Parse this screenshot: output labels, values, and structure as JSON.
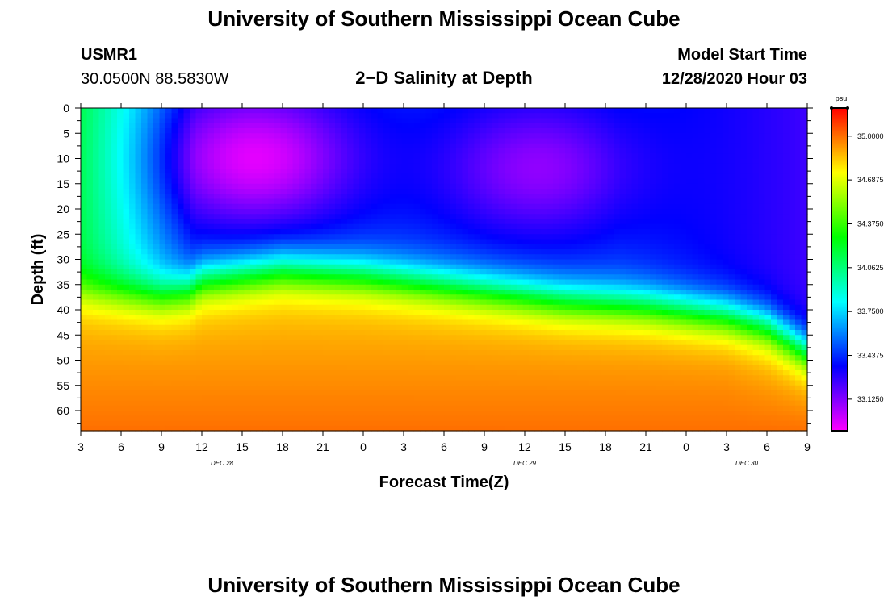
{
  "header": {
    "title": "University of Southern Mississippi Ocean Cube",
    "station": "USMR1",
    "location": "30.0500N 88.5830W",
    "subtitle": "2−D Salinity at Depth",
    "model_label": "Model Start Time",
    "model_time": "12/28/2020 Hour 03"
  },
  "footer": {
    "title": "University of Southern Mississippi Ocean Cube"
  },
  "colors": {
    "background": "#ffffff",
    "axis": "#000000"
  },
  "chart_data": {
    "type": "heatmap",
    "title": "2−D Salinity at Depth",
    "xlabel": "Forecast Time(Z)",
    "ylabel": "Depth (ft)",
    "x_tick_labels": [
      "3",
      "6",
      "9",
      "12",
      "15",
      "18",
      "21",
      "0",
      "3",
      "6",
      "9",
      "12",
      "15",
      "18",
      "21",
      "0",
      "3",
      "6",
      "9"
    ],
    "x_range_hours": [
      0,
      54
    ],
    "day_labels": [
      {
        "text": "DEC  28",
        "hour": 10.5
      },
      {
        "text": "DEC  29",
        "hour": 33
      },
      {
        "text": "DEC  30",
        "hour": 49.5
      }
    ],
    "y_tick_labels": [
      "0",
      "5",
      "10",
      "15",
      "20",
      "25",
      "30",
      "35",
      "40",
      "45",
      "50",
      "55",
      "60"
    ],
    "y_ticks": [
      0,
      5,
      10,
      15,
      20,
      25,
      30,
      35,
      40,
      45,
      50,
      55,
      60
    ],
    "y_range": [
      0,
      64
    ],
    "colorbar": {
      "unit": "psu",
      "min": 32.9,
      "max": 35.2,
      "tick_labels": [
        "35.0000",
        "34.6875",
        "34.3750",
        "34.0625",
        "33.7500",
        "33.4375",
        "33.1250"
      ],
      "ticks": [
        35.0,
        34.6875,
        34.375,
        34.0625,
        33.75,
        33.4375,
        33.125
      ]
    },
    "series": [
      {
        "name": "halocline_depth_ft",
        "hours": [
          0,
          3,
          6,
          8,
          9,
          12,
          15,
          18,
          21,
          24,
          27,
          30,
          33,
          36,
          39,
          42,
          45,
          48,
          51,
          54
        ],
        "values": [
          36,
          36.5,
          37,
          36,
          34,
          33,
          32,
          32.5,
          33,
          34,
          35,
          36,
          37,
          38,
          38.5,
          39,
          40,
          41,
          43,
          48
        ]
      },
      {
        "name": "low_salinity_cores",
        "values": [
          {
            "hour": 13,
            "depth_ft": 10,
            "psu": 32.95
          },
          {
            "hour": 34,
            "depth_ft": 12,
            "psu": 33.1
          }
        ]
      }
    ]
  }
}
